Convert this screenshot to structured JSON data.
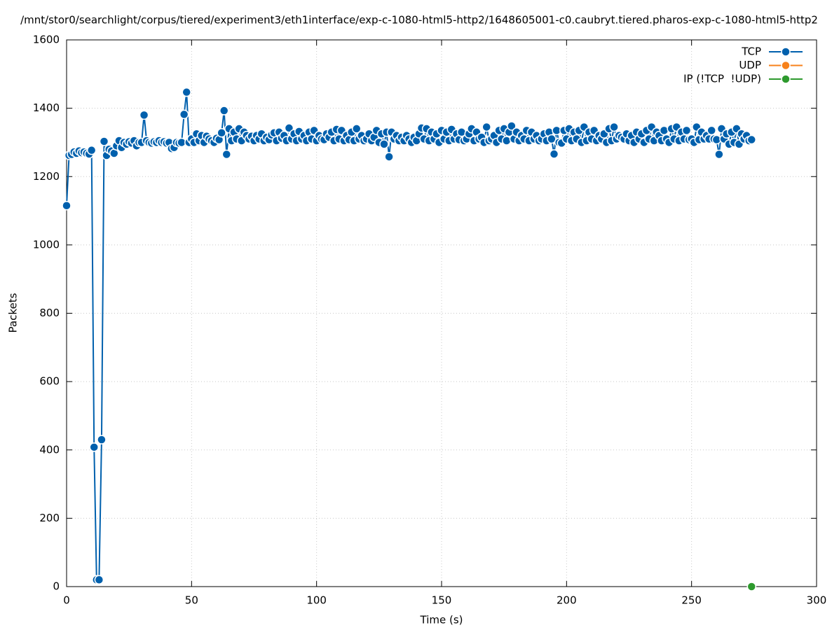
{
  "chart_data": {
    "type": "line",
    "title": "/mnt/stor0/searchlight/corpus/tiered/experiment3/eth1interface/exp-c-1080-html5-http2/1648605001-c0.caubryt.tiered.pharos-exp-c-1080-html5-http2",
    "x_label": "Time (s)",
    "y_label": "Packets",
    "xlim": [
      0,
      300
    ],
    "xticks": [
      0,
      50,
      100,
      150,
      200,
      250,
      300
    ],
    "ylim": [
      0,
      1600
    ],
    "yticks": [
      0,
      200,
      400,
      600,
      800,
      1000,
      1200,
      1400,
      1600
    ],
    "grid": true,
    "legend": "top-right",
    "series": [
      {
        "name": "TCP",
        "color": "#0060ad",
        "x": [
          0,
          1,
          2,
          3,
          4,
          5,
          6,
          7,
          8,
          9,
          10,
          11,
          12,
          13,
          14,
          15,
          16,
          17,
          18,
          19,
          20,
          21,
          22,
          23,
          24,
          25,
          26,
          27,
          28,
          29,
          30,
          31,
          32,
          33,
          34,
          35,
          36,
          37,
          38,
          39,
          40,
          41,
          42,
          43,
          44,
          45,
          46,
          47,
          48,
          49,
          50,
          51,
          52,
          53,
          54,
          55,
          56,
          57,
          58,
          59,
          60,
          61,
          62,
          63,
          64,
          65,
          66,
          67,
          68,
          69,
          70,
          71,
          72,
          73,
          74,
          75,
          76,
          77,
          78,
          79,
          80,
          81,
          82,
          83,
          84,
          85,
          86,
          87,
          88,
          89,
          90,
          91,
          92,
          93,
          94,
          95,
          96,
          97,
          98,
          99,
          100,
          101,
          102,
          103,
          104,
          105,
          106,
          107,
          108,
          109,
          110,
          111,
          112,
          113,
          114,
          115,
          116,
          117,
          118,
          119,
          120,
          121,
          122,
          123,
          124,
          125,
          126,
          127,
          128,
          129,
          130,
          131,
          132,
          133,
          134,
          135,
          136,
          137,
          138,
          139,
          140,
          141,
          142,
          143,
          144,
          145,
          146,
          147,
          148,
          149,
          150,
          151,
          152,
          153,
          154,
          155,
          156,
          157,
          158,
          159,
          160,
          161,
          162,
          163,
          164,
          165,
          166,
          167,
          168,
          169,
          170,
          171,
          172,
          173,
          174,
          175,
          176,
          177,
          178,
          179,
          180,
          181,
          182,
          183,
          184,
          185,
          186,
          187,
          188,
          189,
          190,
          191,
          192,
          193,
          194,
          195,
          196,
          197,
          198,
          199,
          200,
          201,
          202,
          203,
          204,
          205,
          206,
          207,
          208,
          209,
          210,
          211,
          212,
          213,
          214,
          215,
          216,
          217,
          218,
          219,
          220,
          221,
          222,
          223,
          224,
          225,
          226,
          227,
          228,
          229,
          230,
          231,
          232,
          233,
          234,
          235,
          236,
          237,
          238,
          239,
          240,
          241,
          242,
          243,
          244,
          245,
          246,
          247,
          248,
          249,
          250,
          251,
          252,
          253,
          254,
          255,
          256,
          257,
          258,
          259,
          260,
          261,
          262,
          263,
          264,
          265,
          266,
          267,
          268,
          269,
          270,
          271,
          272,
          273,
          274
        ],
        "values": [
          1115,
          1262,
          1265,
          1272,
          1268,
          1275,
          1270,
          1272,
          1268,
          1266,
          1277,
          408,
          20,
          20,
          430,
          1303,
          1262,
          1280,
          1275,
          1268,
          1290,
          1305,
          1285,
          1300,
          1295,
          1302,
          1298,
          1305,
          1290,
          1300,
          1300,
          1380,
          1305,
          1300,
          1298,
          1302,
          1300,
          1305,
          1300,
          1302,
          1298,
          1300,
          1282,
          1285,
          1300,
          1298,
          1300,
          1382,
          1447,
          1300,
          1310,
          1300,
          1325,
          1305,
          1320,
          1300,
          1318,
          1310,
          1305,
          1300,
          1312,
          1308,
          1328,
          1393,
          1265,
          1340,
          1305,
          1330,
          1310,
          1340,
          1305,
          1330,
          1320,
          1310,
          1318,
          1305,
          1320,
          1310,
          1325,
          1305,
          1315,
          1308,
          1322,
          1328,
          1305,
          1330,
          1312,
          1320,
          1305,
          1342,
          1310,
          1325,
          1305,
          1332,
          1310,
          1320,
          1305,
          1330,
          1310,
          1335,
          1305,
          1320,
          1310,
          1308,
          1325,
          1315,
          1330,
          1305,
          1338,
          1310,
          1335,
          1305,
          1320,
          1308,
          1330,
          1305,
          1340,
          1310,
          1320,
          1305,
          1310,
          1325,
          1305,
          1315,
          1335,
          1300,
          1325,
          1295,
          1330,
          1258,
          1330,
          1310,
          1320,
          1305,
          1315,
          1305,
          1320,
          1310,
          1300,
          1315,
          1305,
          1325,
          1342,
          1310,
          1340,
          1305,
          1330,
          1310,
          1325,
          1300,
          1335,
          1310,
          1330,
          1305,
          1338,
          1310,
          1325,
          1308,
          1330,
          1305,
          1310,
          1325,
          1340,
          1305,
          1330,
          1310,
          1315,
          1300,
          1345,
          1305,
          1310,
          1320,
          1300,
          1335,
          1310,
          1340,
          1305,
          1330,
          1348,
          1310,
          1330,
          1305,
          1320,
          1310,
          1335,
          1305,
          1330,
          1310,
          1320,
          1305,
          1310,
          1325,
          1305,
          1330,
          1310,
          1266,
          1335,
          1300,
          1298,
          1335,
          1310,
          1340,
          1305,
          1330,
          1310,
          1335,
          1300,
          1345,
          1305,
          1330,
          1310,
          1335,
          1305,
          1320,
          1310,
          1325,
          1300,
          1340,
          1305,
          1345,
          1310,
          1320,
          1315,
          1310,
          1325,
          1305,
          1320,
          1300,
          1330,
          1310,
          1325,
          1300,
          1335,
          1310,
          1345,
          1305,
          1330,
          1320,
          1305,
          1335,
          1310,
          1300,
          1340,
          1310,
          1345,
          1305,
          1330,
          1310,
          1335,
          1308,
          1310,
          1300,
          1345,
          1308,
          1330,
          1310,
          1320,
          1310,
          1335,
          1310,
          1308,
          1265,
          1340,
          1310,
          1325,
          1295,
          1330,
          1300,
          1340,
          1295,
          1325,
          1310,
          1320,
          1305,
          1308
        ]
      },
      {
        "name": "UDP",
        "color": "#f7821b",
        "x": [],
        "values": []
      },
      {
        "name": "IP (!TCP  !UDP)",
        "color": "#2e9a2e",
        "x": [
          274
        ],
        "values": [
          0
        ]
      }
    ]
  }
}
